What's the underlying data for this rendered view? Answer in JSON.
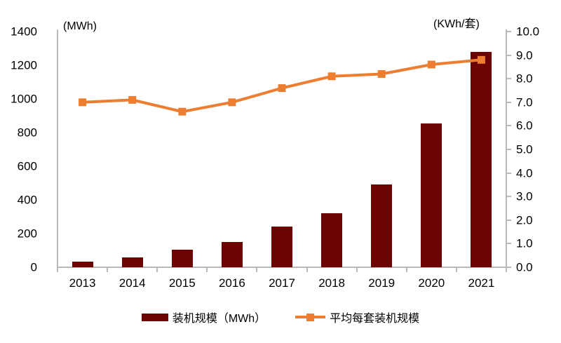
{
  "chart_data": {
    "type": "bar",
    "subtype": "combo-bar-line",
    "categories": [
      "2013",
      "2014",
      "2015",
      "2016",
      "2017",
      "2018",
      "2019",
      "2020",
      "2021"
    ],
    "series": [
      {
        "name": "装机规模（MWh）",
        "type": "bar",
        "axis": "left",
        "color": "#6a0302",
        "values": [
          35,
          60,
          105,
          150,
          240,
          320,
          490,
          855,
          1280
        ]
      },
      {
        "name": "平均每套装机规模",
        "type": "line",
        "axis": "right",
        "color": "#ed7d31",
        "marker": "square",
        "values": [
          7.0,
          7.1,
          6.6,
          7.0,
          7.6,
          8.1,
          8.2,
          8.6,
          8.8
        ]
      }
    ],
    "left_axis": {
      "label": "(MWh)",
      "min": 0,
      "max": 1400,
      "step": 200,
      "tick_labels": [
        "1400",
        "1200",
        "1000",
        "800",
        "600",
        "400",
        "200",
        "0"
      ]
    },
    "right_axis": {
      "label": "(KWh/套)",
      "min": 0,
      "max": 10,
      "step": 1,
      "tick_labels": [
        "10.0",
        "9.0",
        "8.0",
        "7.0",
        "6.0",
        "5.0",
        "4.0",
        "3.0",
        "2.0",
        "1.0",
        "0.0"
      ]
    },
    "grid": false,
    "legend_position": "bottom",
    "axis_color": "#b9b9b9",
    "text_color": "#000000"
  }
}
